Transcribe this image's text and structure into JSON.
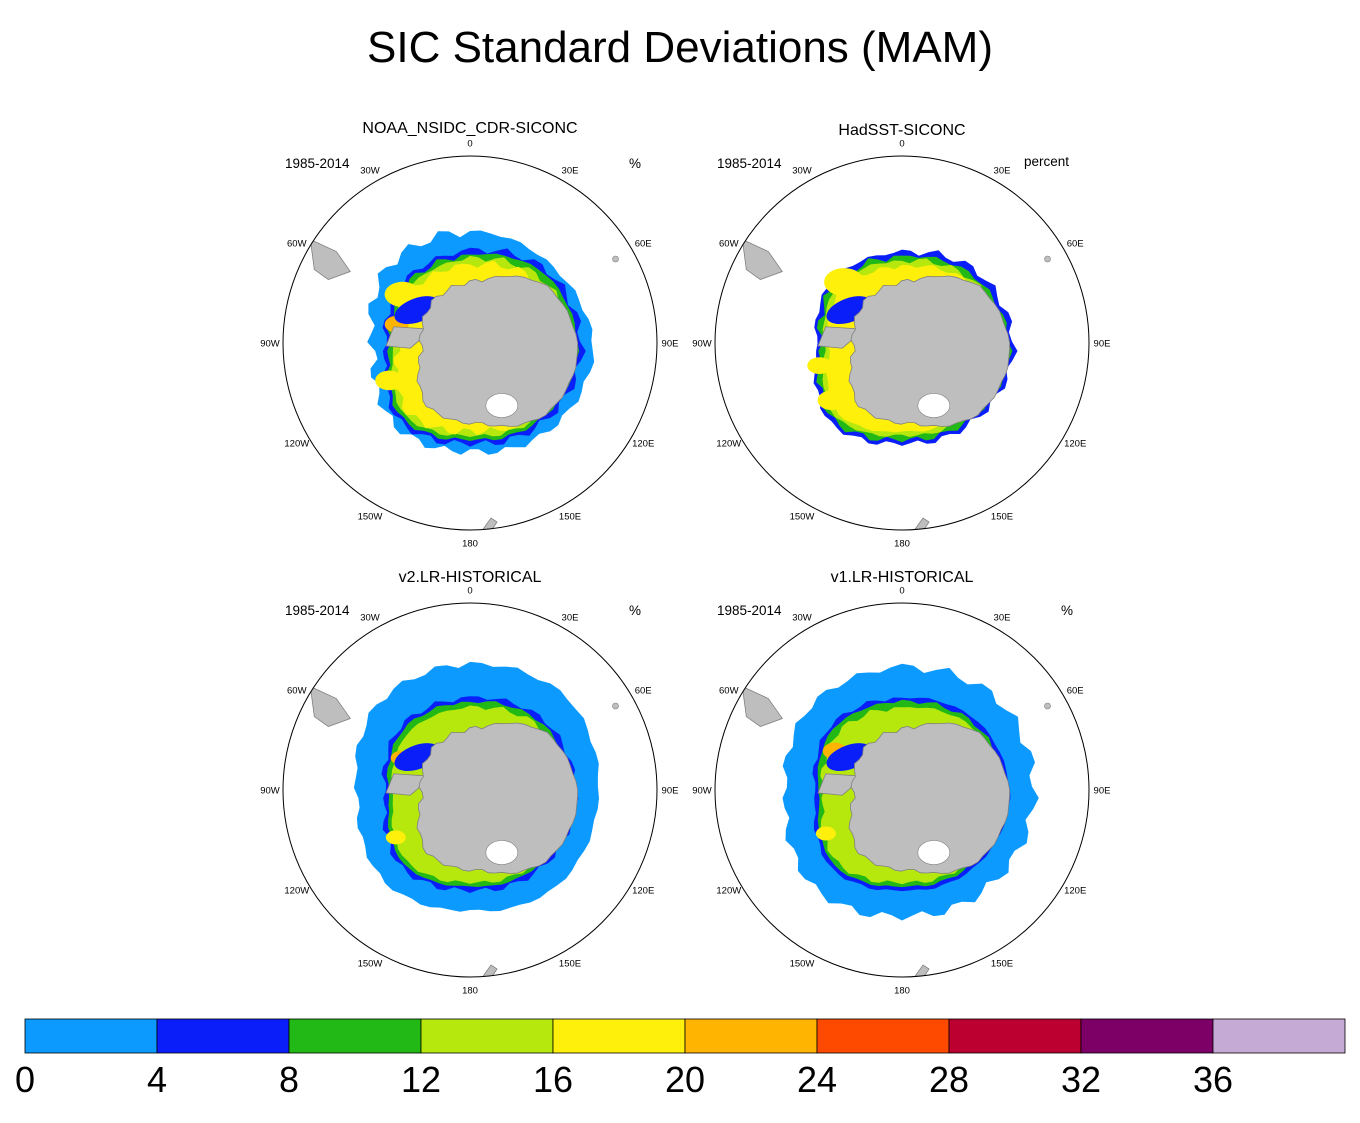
{
  "title": "SIC Standard Deviations (MAM)",
  "panels": [
    {
      "title": "NOAA_NSIDC_CDR-SICONC",
      "period": "1985-2014",
      "units": "%"
    },
    {
      "title": "HadSST-SICONC",
      "period": "1985-2014",
      "units": "percent"
    },
    {
      "title": "v2.LR-HISTORICAL",
      "period": "1985-2014",
      "units": "%"
    },
    {
      "title": "v1.LR-HISTORICAL",
      "period": "1985-2014",
      "units": "%"
    }
  ],
  "longitude_labels": [
    "0",
    "30E",
    "60E",
    "90E",
    "120E",
    "150E",
    "180",
    "150W",
    "120W",
    "90W",
    "60W",
    "30W"
  ],
  "colorbar": {
    "tick_labels": [
      "0",
      "4",
      "8",
      "12",
      "16",
      "20",
      "24",
      "28",
      "32",
      "36"
    ],
    "colors": [
      "#0c9aff",
      "#0a1efa",
      "#22b815",
      "#b6e80e",
      "#fef00a",
      "#feb400",
      "#fe4a00",
      "#bc0030",
      "#7c0066",
      "#c6aad6"
    ]
  },
  "map_colors": {
    "land": "#bebebe",
    "ocean": "#ffffff",
    "coast": "#808080"
  }
}
